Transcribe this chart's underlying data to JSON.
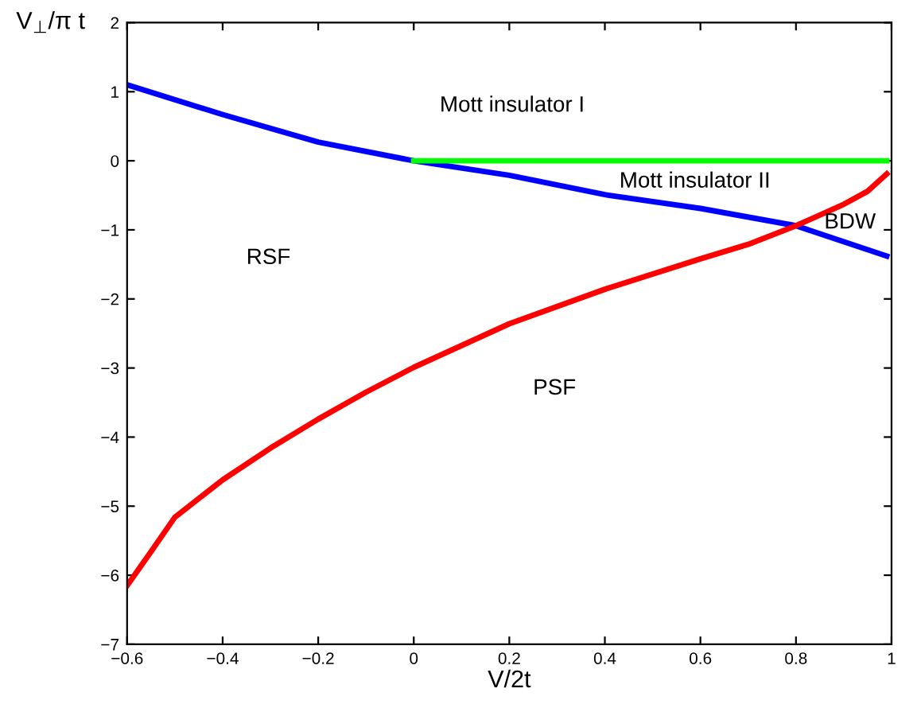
{
  "chart_data": {
    "type": "line",
    "xlabel": "V/2t",
    "ylabel": "V$_{⊥}$/π t",
    "xlim": [
      -0.6,
      1
    ],
    "ylim": [
      -7,
      2
    ],
    "xticks": [
      {
        "value": -0.6,
        "label": "−0.6"
      },
      {
        "value": -0.4,
        "label": "−0.4"
      },
      {
        "value": -0.2,
        "label": "−0.2"
      },
      0,
      0.2,
      0.4,
      0.6,
      0.8,
      1
    ],
    "yticks": [
      {
        "value": -7,
        "label": "−7"
      },
      {
        "value": -6,
        "label": "−6"
      },
      {
        "value": -5,
        "label": "−5"
      },
      {
        "value": -4,
        "label": "−4"
      },
      {
        "value": -3,
        "label": "−3"
      },
      {
        "value": -2,
        "label": "−2"
      },
      {
        "value": -1,
        "label": "−1"
      },
      0,
      1,
      2
    ],
    "grid": false,
    "legend": false,
    "marker": "none",
    "line_style": "solid",
    "series": [
      {
        "color": "#0000ff",
        "x": [
          -0.6,
          -0.4,
          -0.2,
          0,
          0.2,
          0.4,
          0.6,
          0.8,
          0.99
        ],
        "values": [
          1.1,
          0.67,
          0.27,
          0,
          -0.21,
          -0.49,
          -0.69,
          -0.94,
          -1.38
        ]
      },
      {
        "color": "#ff0000",
        "x": [
          -0.6,
          -0.55,
          -0.5,
          -0.4,
          -0.3,
          -0.2,
          -0.1,
          0,
          0.2,
          0.4,
          0.6,
          0.7,
          0.8,
          0.9,
          0.95,
          0.99
        ],
        "values": [
          -6.15,
          -5.66,
          -5.16,
          -4.62,
          -4.16,
          -3.74,
          -3.35,
          -2.99,
          -2.36,
          -1.86,
          -1.42,
          -1.21,
          -0.94,
          -0.63,
          -0.44,
          -0.19
        ]
      },
      {
        "color": "#00ff00",
        "x": [
          0,
          0.99
        ],
        "values": [
          0,
          0
        ]
      }
    ],
    "annotations": [
      "Mott insulator I",
      "Mott insulator II",
      "BDW",
      "RSF",
      "PSF"
    ]
  }
}
